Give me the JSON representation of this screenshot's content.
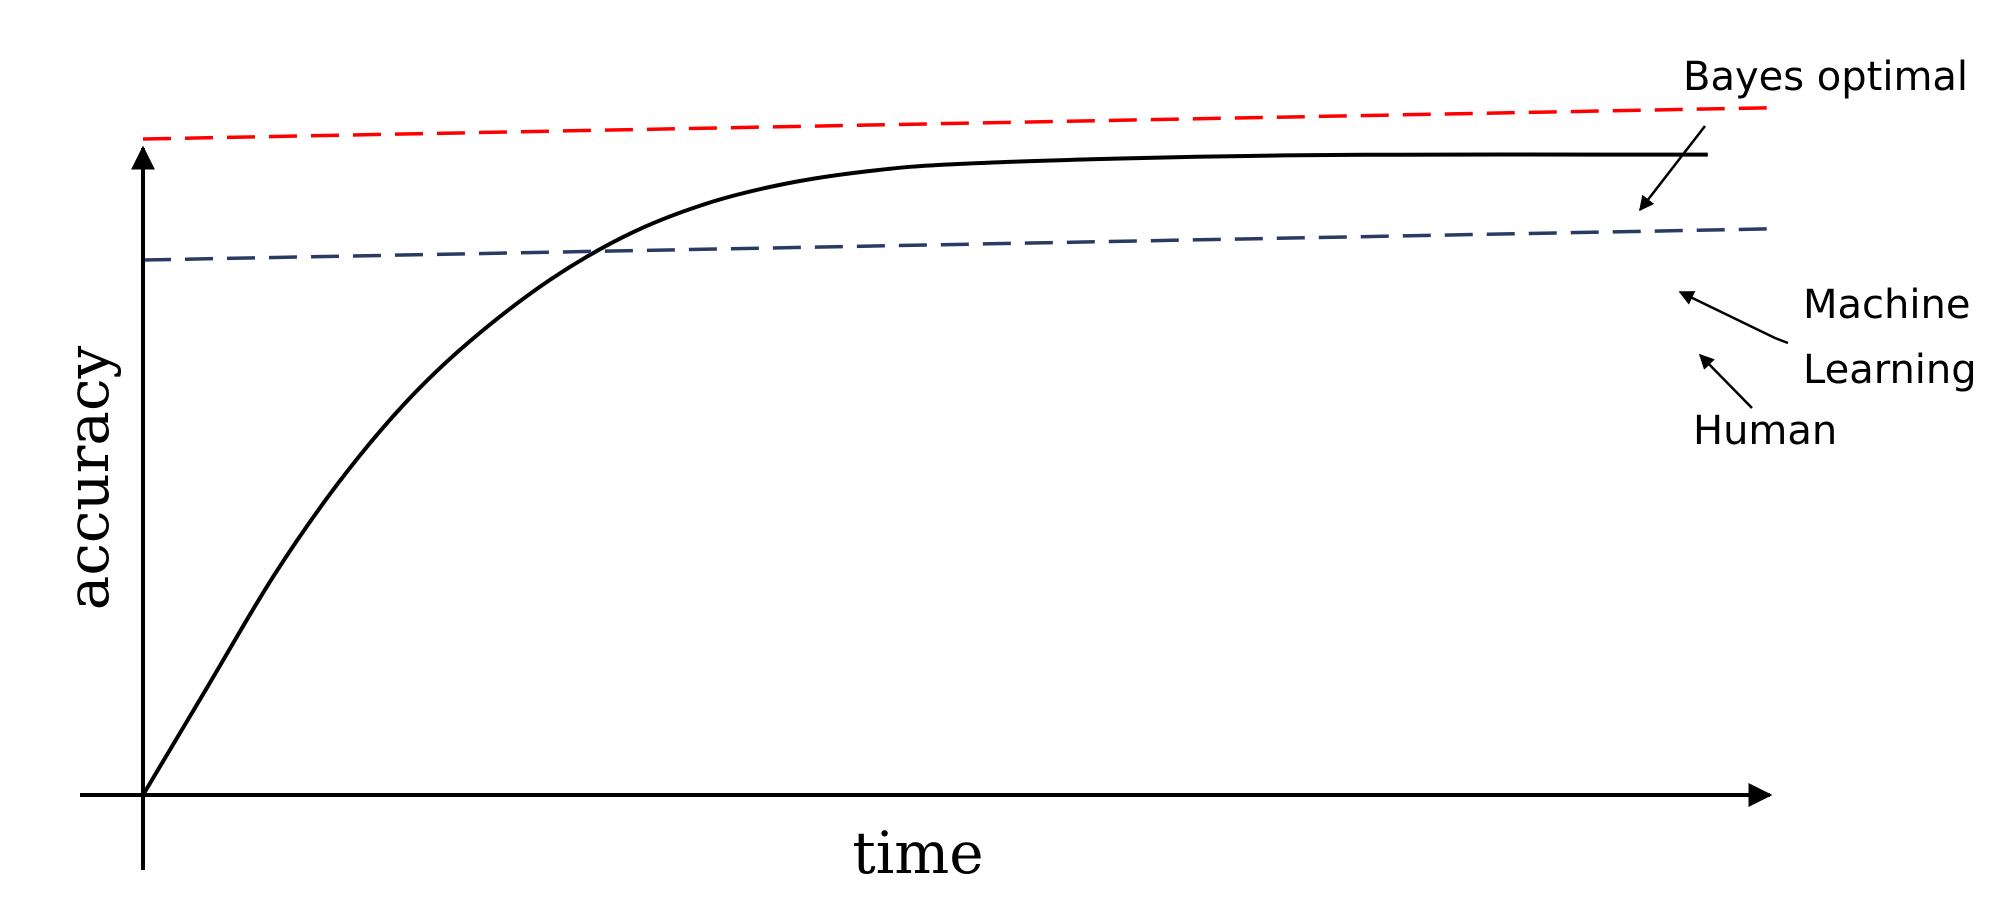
{
  "chart_data": {
    "type": "line",
    "xlabel": "time",
    "ylabel": "accuracy",
    "xlim": [
      0,
      100
    ],
    "ylim": [
      0,
      100
    ],
    "ticks_shown": false,
    "grid": false,
    "legend": "none",
    "series": [
      {
        "style": "solid",
        "color": "#000000",
        "points": [
          [
            0,
            0
          ],
          [
            4,
            14
          ],
          [
            8,
            28
          ],
          [
            12,
            40
          ],
          [
            16,
            50
          ],
          [
            20,
            58
          ],
          [
            25,
            66
          ],
          [
            30,
            72
          ],
          [
            35,
            76
          ],
          [
            40,
            78.5
          ],
          [
            45,
            80
          ],
          [
            50,
            80.8
          ],
          [
            60,
            81.5
          ],
          [
            70,
            81.9
          ],
          [
            80,
            82
          ],
          [
            90,
            82
          ],
          [
            96,
            82
          ]
        ]
      },
      {
        "style": "dashed",
        "color": "#ff0000",
        "points": [
          [
            0,
            84
          ],
          [
            100,
            88
          ]
        ]
      },
      {
        "style": "dashed",
        "color": "#2a3b63",
        "points": [
          [
            0,
            68.5
          ],
          [
            100,
            72.5
          ]
        ]
      }
    ],
    "annotations": [
      {
        "text": "Bayes optimal",
        "points_to": "red dashed line"
      },
      {
        "text": "Machine\nLearning",
        "points_to": "solid black curve and navy dashed line"
      },
      {
        "text": "Human",
        "points_to": "navy dashed line"
      }
    ]
  },
  "labels": {
    "bayes": "Bayes optimal",
    "ml_line1": "Machine",
    "ml_line2": "Learning",
    "human": "Human"
  }
}
